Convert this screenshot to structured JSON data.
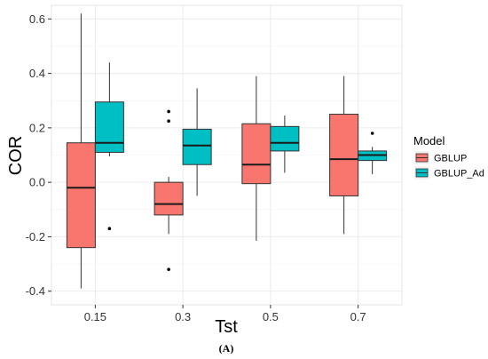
{
  "chart_data": {
    "type": "box",
    "xlabel": "Tst",
    "ylabel": "COR",
    "categories": [
      "0.15",
      "0.3",
      "0.5",
      "0.7"
    ],
    "ylim": [
      -0.45,
      0.65
    ],
    "y_ticks": [
      "-0.4",
      "-0.2",
      "0.0",
      "0.2",
      "0.4",
      "0.6"
    ],
    "y_tick_values": [
      -0.4,
      -0.2,
      0.0,
      0.2,
      0.4,
      0.6
    ],
    "grid": true,
    "legend": {
      "title": "Model",
      "position": "right"
    },
    "caption": "(A)",
    "series": [
      {
        "name": "GBLUP",
        "color": "#F8766D",
        "boxes": [
          {
            "category": "0.15",
            "min": -0.39,
            "q1": -0.24,
            "median": -0.02,
            "q3": 0.145,
            "max": 0.62,
            "outliers": []
          },
          {
            "category": "0.3",
            "min": -0.19,
            "q1": -0.12,
            "median": -0.08,
            "q3": 0.0,
            "max": 0.02,
            "outliers": [
              0.26,
              0.225,
              -0.32
            ]
          },
          {
            "category": "0.5",
            "min": -0.215,
            "q1": -0.005,
            "median": 0.065,
            "q3": 0.215,
            "max": 0.39,
            "outliers": []
          },
          {
            "category": "0.7",
            "min": -0.19,
            "q1": -0.05,
            "median": 0.085,
            "q3": 0.25,
            "max": 0.39,
            "outliers": []
          }
        ]
      },
      {
        "name": "GBLUP_Ad",
        "color": "#00BFC4",
        "boxes": [
          {
            "category": "0.15",
            "min": 0.095,
            "q1": 0.11,
            "median": 0.145,
            "q3": 0.295,
            "max": 0.44,
            "outliers": [
              -0.17
            ]
          },
          {
            "category": "0.3",
            "min": -0.05,
            "q1": 0.065,
            "median": 0.135,
            "q3": 0.195,
            "max": 0.345,
            "outliers": []
          },
          {
            "category": "0.5",
            "min": 0.035,
            "q1": 0.115,
            "median": 0.145,
            "q3": 0.205,
            "max": 0.245,
            "outliers": []
          },
          {
            "category": "0.7",
            "min": 0.03,
            "q1": 0.08,
            "median": 0.1,
            "q3": 0.115,
            "max": 0.13,
            "outliers": [
              0.18
            ]
          }
        ]
      }
    ]
  }
}
